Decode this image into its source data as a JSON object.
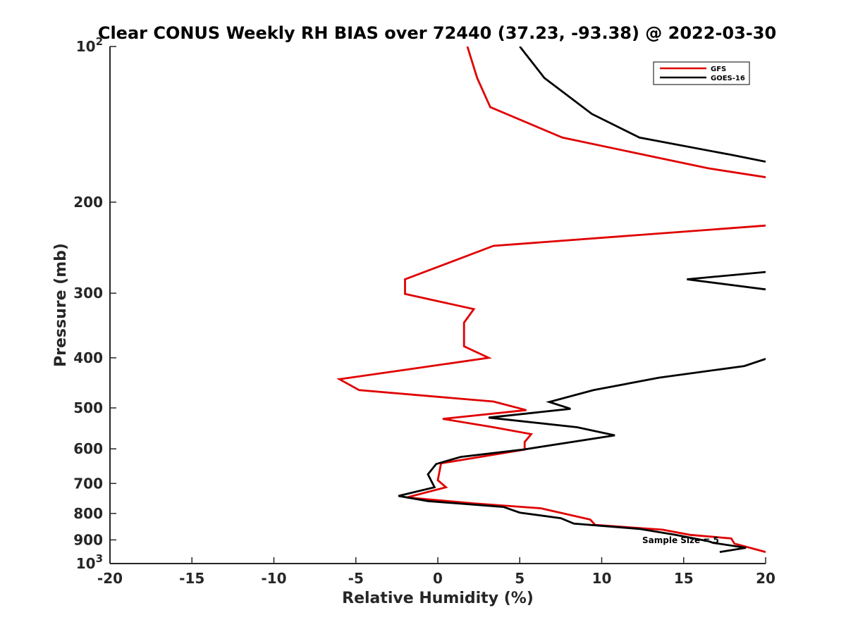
{
  "chart_data": {
    "type": "line",
    "title": "Clear CONUS Weekly RH BIAS over 72440 (37.23, -93.38) @ 2022-03-30",
    "xlabel": "Relative Humidity (%)",
    "ylabel": "Pressure (mb)",
    "xlim": [
      -20,
      20
    ],
    "ylim": [
      100,
      1000
    ],
    "y_scale": "log",
    "y_reversed": true,
    "grid": false,
    "legend_position": "top-right",
    "x_ticks": [
      "-20",
      "-15",
      "-10",
      "-5",
      "0",
      "5",
      "10",
      "15",
      "20"
    ],
    "y_ticks": [
      {
        "value": 100,
        "base": "10",
        "exp": "2"
      },
      {
        "value": 200,
        "label": "200"
      },
      {
        "value": 300,
        "label": "300"
      },
      {
        "value": 400,
        "label": "400"
      },
      {
        "value": 500,
        "label": "500"
      },
      {
        "value": 600,
        "label": "600"
      },
      {
        "value": 700,
        "label": "700"
      },
      {
        "value": 800,
        "label": "800"
      },
      {
        "value": 900,
        "label": "900"
      },
      {
        "value": 1000,
        "base": "10",
        "exp": "3"
      }
    ],
    "series": [
      {
        "name": "GFS",
        "color": "#e00000",
        "points": [
          [
            1.8,
            100
          ],
          [
            2.4,
            115
          ],
          [
            3.2,
            131
          ],
          [
            7.6,
            150
          ],
          [
            16.5,
            172
          ],
          [
            20,
            179
          ],
          [
            null,
            null
          ],
          [
            20,
            222
          ],
          [
            3.4,
            243
          ],
          [
            -2.0,
            282
          ],
          [
            -2.0,
            301
          ],
          [
            2.2,
            322
          ],
          [
            1.6,
            342
          ],
          [
            1.6,
            380
          ],
          [
            3.1,
            400
          ],
          [
            -2.0,
            422
          ],
          [
            -6.0,
            440
          ],
          [
            -4.8,
            462
          ],
          [
            3.4,
            486
          ],
          [
            5.4,
            505
          ],
          [
            0.3,
            525
          ],
          [
            3.4,
            545
          ],
          [
            5.7,
            562
          ],
          [
            5.3,
            582
          ],
          [
            5.3,
            602
          ],
          [
            0.2,
            640
          ],
          [
            0.0,
            690
          ],
          [
            0.5,
            712
          ],
          [
            -1.9,
            745
          ],
          [
            2.2,
            765
          ],
          [
            6.3,
            782
          ],
          [
            9.3,
            822
          ],
          [
            9.6,
            842
          ],
          [
            13.7,
            860
          ],
          [
            15.4,
            880
          ],
          [
            17.9,
            894
          ],
          [
            18.1,
            915
          ],
          [
            20,
            950
          ]
        ]
      },
      {
        "name": "GOES-16",
        "color": "#000000",
        "points": [
          [
            5.0,
            100
          ],
          [
            6.5,
            115
          ],
          [
            9.4,
            135
          ],
          [
            12.3,
            150
          ],
          [
            17.9,
            162
          ],
          [
            20,
            167
          ],
          [
            null,
            null
          ],
          [
            20,
            273
          ],
          [
            15.2,
            282
          ],
          [
            20,
            295
          ],
          [
            null,
            null
          ],
          [
            20,
            402
          ],
          [
            18.7,
            415
          ],
          [
            13.5,
            437
          ],
          [
            9.5,
            462
          ],
          [
            6.8,
            487
          ],
          [
            8.1,
            502
          ],
          [
            3.1,
            522
          ],
          [
            8.5,
            545
          ],
          [
            10.8,
            565
          ],
          [
            5.2,
            602
          ],
          [
            1.4,
            622
          ],
          [
            -0.1,
            642
          ],
          [
            -0.6,
            672
          ],
          [
            -0.4,
            692
          ],
          [
            -0.2,
            712
          ],
          [
            -2.4,
            740
          ],
          [
            -0.6,
            757
          ],
          [
            4.0,
            777
          ],
          [
            5.0,
            797
          ],
          [
            7.5,
            817
          ],
          [
            8.3,
            837
          ],
          [
            12.3,
            857
          ],
          [
            14.5,
            880
          ],
          [
            15.7,
            895
          ],
          [
            16.5,
            905
          ],
          [
            16.8,
            912
          ],
          [
            18.8,
            932
          ],
          [
            17.2,
            950
          ]
        ]
      }
    ],
    "annotation": "Sample Size = 5"
  }
}
